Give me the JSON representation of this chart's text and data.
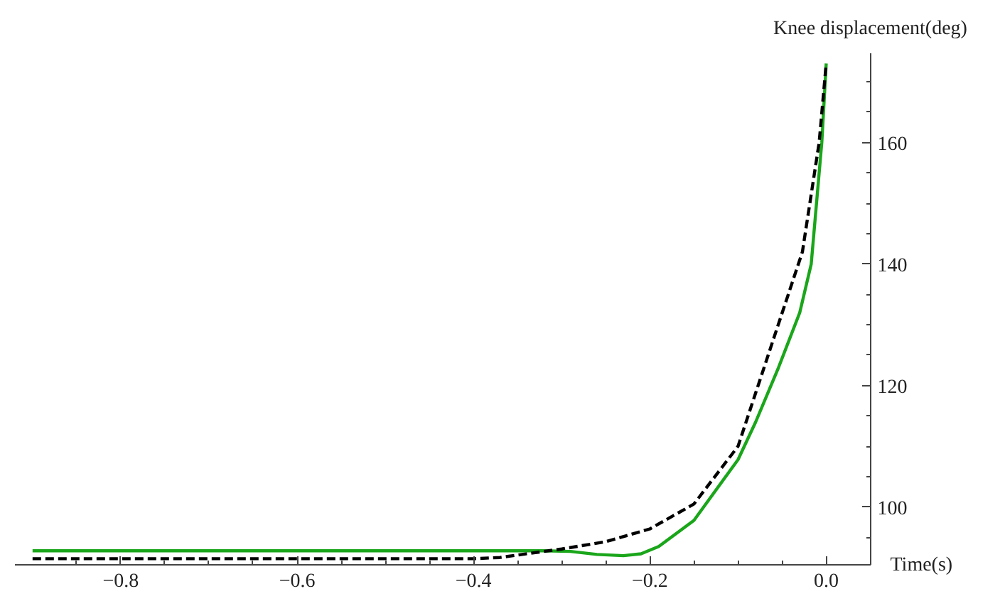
{
  "chart_data": {
    "type": "line",
    "xlabel": "Time(s)",
    "ylabel": "Knee displacement(deg)",
    "xlim": [
      -0.92,
      0.05
    ],
    "ylim": [
      90.4,
      174.6
    ],
    "xticks": [
      {
        "value": -0.8,
        "label": "−0.8"
      },
      {
        "value": -0.6,
        "label": "−0.6"
      },
      {
        "value": -0.4,
        "label": "−0.4"
      },
      {
        "value": -0.2,
        "label": "−0.2"
      },
      {
        "value": 0.0,
        "label": "0.0"
      },
      {
        "value": -0.85,
        "label": null
      },
      {
        "value": -0.75,
        "label": null
      },
      {
        "value": -0.7,
        "label": null
      },
      {
        "value": -0.65,
        "label": null
      },
      {
        "value": -0.55,
        "label": null
      },
      {
        "value": -0.5,
        "label": null
      },
      {
        "value": -0.45,
        "label": null
      },
      {
        "value": -0.35,
        "label": null
      },
      {
        "value": -0.3,
        "label": null
      },
      {
        "value": -0.25,
        "label": null
      },
      {
        "value": -0.15,
        "label": null
      },
      {
        "value": -0.1,
        "label": null
      },
      {
        "value": -0.05,
        "label": null
      }
    ],
    "yticks": [
      100,
      120,
      140,
      160,
      {
        "value": 95,
        "label": null
      },
      {
        "value": 105,
        "label": null
      },
      {
        "value": 110,
        "label": null
      },
      {
        "value": 115,
        "label": null
      },
      {
        "value": 125,
        "label": null
      },
      {
        "value": 130,
        "label": null
      },
      {
        "value": 135,
        "label": null
      },
      {
        "value": 145,
        "label": null
      },
      {
        "value": 150,
        "label": null
      },
      {
        "value": 155,
        "label": null
      },
      {
        "value": 165,
        "label": null
      },
      {
        "value": 170,
        "label": null
      }
    ],
    "grid": false,
    "series": [
      {
        "color": "#1aa61a",
        "line_style": "solid",
        "x": [
          -0.9,
          -0.32,
          -0.29,
          -0.26,
          -0.23,
          -0.21,
          -0.19,
          -0.15,
          -0.1,
          -0.08,
          -0.054,
          -0.03,
          -0.017,
          -0.005,
          0.0
        ],
        "values": [
          92.8,
          92.8,
          92.7,
          92.2,
          92.0,
          92.3,
          93.5,
          97.8,
          107.8,
          114,
          123,
          132,
          140,
          160,
          173
        ]
      },
      {
        "color": "#000000",
        "line_style": "dashed",
        "x": [
          -0.9,
          -0.4,
          -0.37,
          -0.33,
          -0.3,
          -0.25,
          -0.2,
          -0.15,
          -0.1,
          -0.059,
          -0.027,
          -0.008,
          0.0
        ],
        "values": [
          91.5,
          91.5,
          91.7,
          92.5,
          93.1,
          94.3,
          96.4,
          100.5,
          110,
          128,
          142,
          160,
          173
        ]
      }
    ]
  }
}
